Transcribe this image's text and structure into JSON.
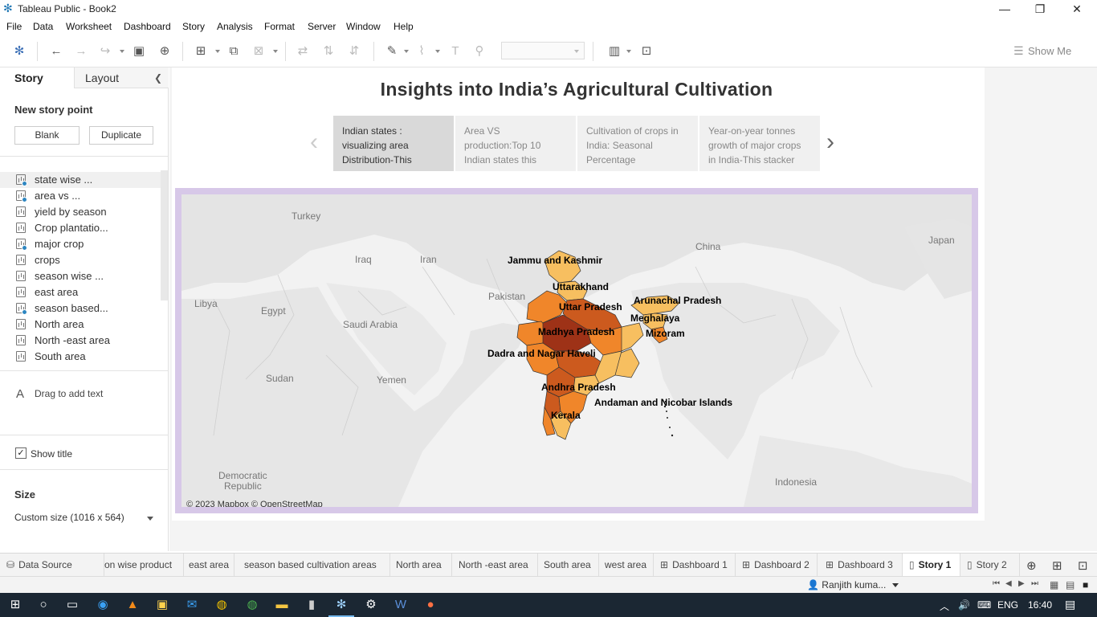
{
  "window": {
    "title": "Tableau Public - Book2"
  },
  "menu": [
    "File",
    "Data",
    "Worksheet",
    "Dashboard",
    "Story",
    "Analysis",
    "Format",
    "Server",
    "Window",
    "Help"
  ],
  "toolbar": {
    "show_me_label": "Show Me"
  },
  "left_panel": {
    "tabs": {
      "story": "Story",
      "layout": "Layout"
    },
    "new_story_point": "New story point",
    "blank_button": "Blank",
    "duplicate_button": "Duplicate",
    "sheets": [
      {
        "label": "state wise ...",
        "used": true,
        "selected": true
      },
      {
        "label": "area vs ...",
        "used": true,
        "selected": false
      },
      {
        "label": "yield by season",
        "used": false,
        "selected": false
      },
      {
        "label": "Crop plantatio...",
        "used": false,
        "selected": false
      },
      {
        "label": "major crop",
        "used": true,
        "selected": false
      },
      {
        "label": "crops",
        "used": false,
        "selected": false
      },
      {
        "label": "season wise ...",
        "used": false,
        "selected": false
      },
      {
        "label": "east area",
        "used": false,
        "selected": false
      },
      {
        "label": " season based...",
        "used": true,
        "selected": false
      },
      {
        "label": "North area",
        "used": false,
        "selected": false
      },
      {
        "label": "North -east area",
        "used": false,
        "selected": false
      },
      {
        "label": "South area",
        "used": false,
        "selected": false
      }
    ],
    "drag_text": "Drag to add text",
    "show_title_label": "Show title",
    "show_title_checked": true,
    "size_label": "Size",
    "size_value": "Custom size (1016 x 564)"
  },
  "story": {
    "title": "Insights into India’s Agricultural Cultivation",
    "points": [
      {
        "lines": [
          " Indian states :",
          "visualizing area",
          "Distribution-This"
        ],
        "active": true
      },
      {
        "lines": [
          "Area VS",
          "production:Top 10",
          "Indian states this"
        ],
        "active": false
      },
      {
        "lines": [
          " Cultivation of crops in",
          "India: Seasonal",
          "Percentage"
        ],
        "active": false
      },
      {
        "lines": [
          "Year-on-year tonnes",
          "growth of major crops",
          "in India-This stacker"
        ],
        "active": false
      }
    ]
  },
  "map": {
    "countries": [
      "Turkey",
      "China",
      "Japan",
      "Iraq",
      "Iran",
      "Libya",
      "Egypt",
      "Pakistan",
      "Saudi Arabia",
      "Yemen",
      "Sudan",
      "Democratic",
      "Republic",
      "Indonesia"
    ],
    "state_labels": [
      "Jammu and Kashmir",
      "Uttarakhand",
      "Uttar Pradesh",
      "Arunachal Pradesh",
      "Meghalaya",
      "Madhya Pradesh",
      "Mizoram",
      "Dadra and Nagar Haveli",
      "Andhra Pradesh",
      "Andaman and Nicobar Islands",
      "Kerala"
    ],
    "attribution": "© 2023 Mapbox © OpenStreetMap",
    "colors": {
      "light": "#f7bf60",
      "mid": "#f0862a",
      "dark": "#cc5a1e",
      "darkest": "#9e3217",
      "frame": "#d7c8e8"
    }
  },
  "bottom_tabs": [
    {
      "label": "Data Source",
      "icon": "database-icon",
      "active": false
    },
    {
      "label": "on wise product",
      "icon": "",
      "active": false
    },
    {
      "label": "east area",
      "icon": "",
      "active": false
    },
    {
      "label": "season based cultivation areas",
      "icon": "",
      "active": false
    },
    {
      "label": "North area",
      "icon": "",
      "active": false
    },
    {
      "label": "North -east area",
      "icon": "",
      "active": false
    },
    {
      "label": "South area",
      "icon": "",
      "active": false
    },
    {
      "label": "west area",
      "icon": "",
      "active": false
    },
    {
      "label": "Dashboard 1",
      "icon": "dashboard-icon",
      "active": false
    },
    {
      "label": "Dashboard 2",
      "icon": "dashboard-icon",
      "active": false
    },
    {
      "label": "Dashboard 3",
      "icon": "dashboard-icon",
      "active": false
    },
    {
      "label": "Story 1",
      "icon": "story-icon",
      "active": true
    },
    {
      "label": "Story 2",
      "icon": "story-icon",
      "active": false
    }
  ],
  "status": {
    "user": "Ranjith kuma..."
  },
  "taskbar": {
    "language": "ENG",
    "time": "16:40"
  }
}
